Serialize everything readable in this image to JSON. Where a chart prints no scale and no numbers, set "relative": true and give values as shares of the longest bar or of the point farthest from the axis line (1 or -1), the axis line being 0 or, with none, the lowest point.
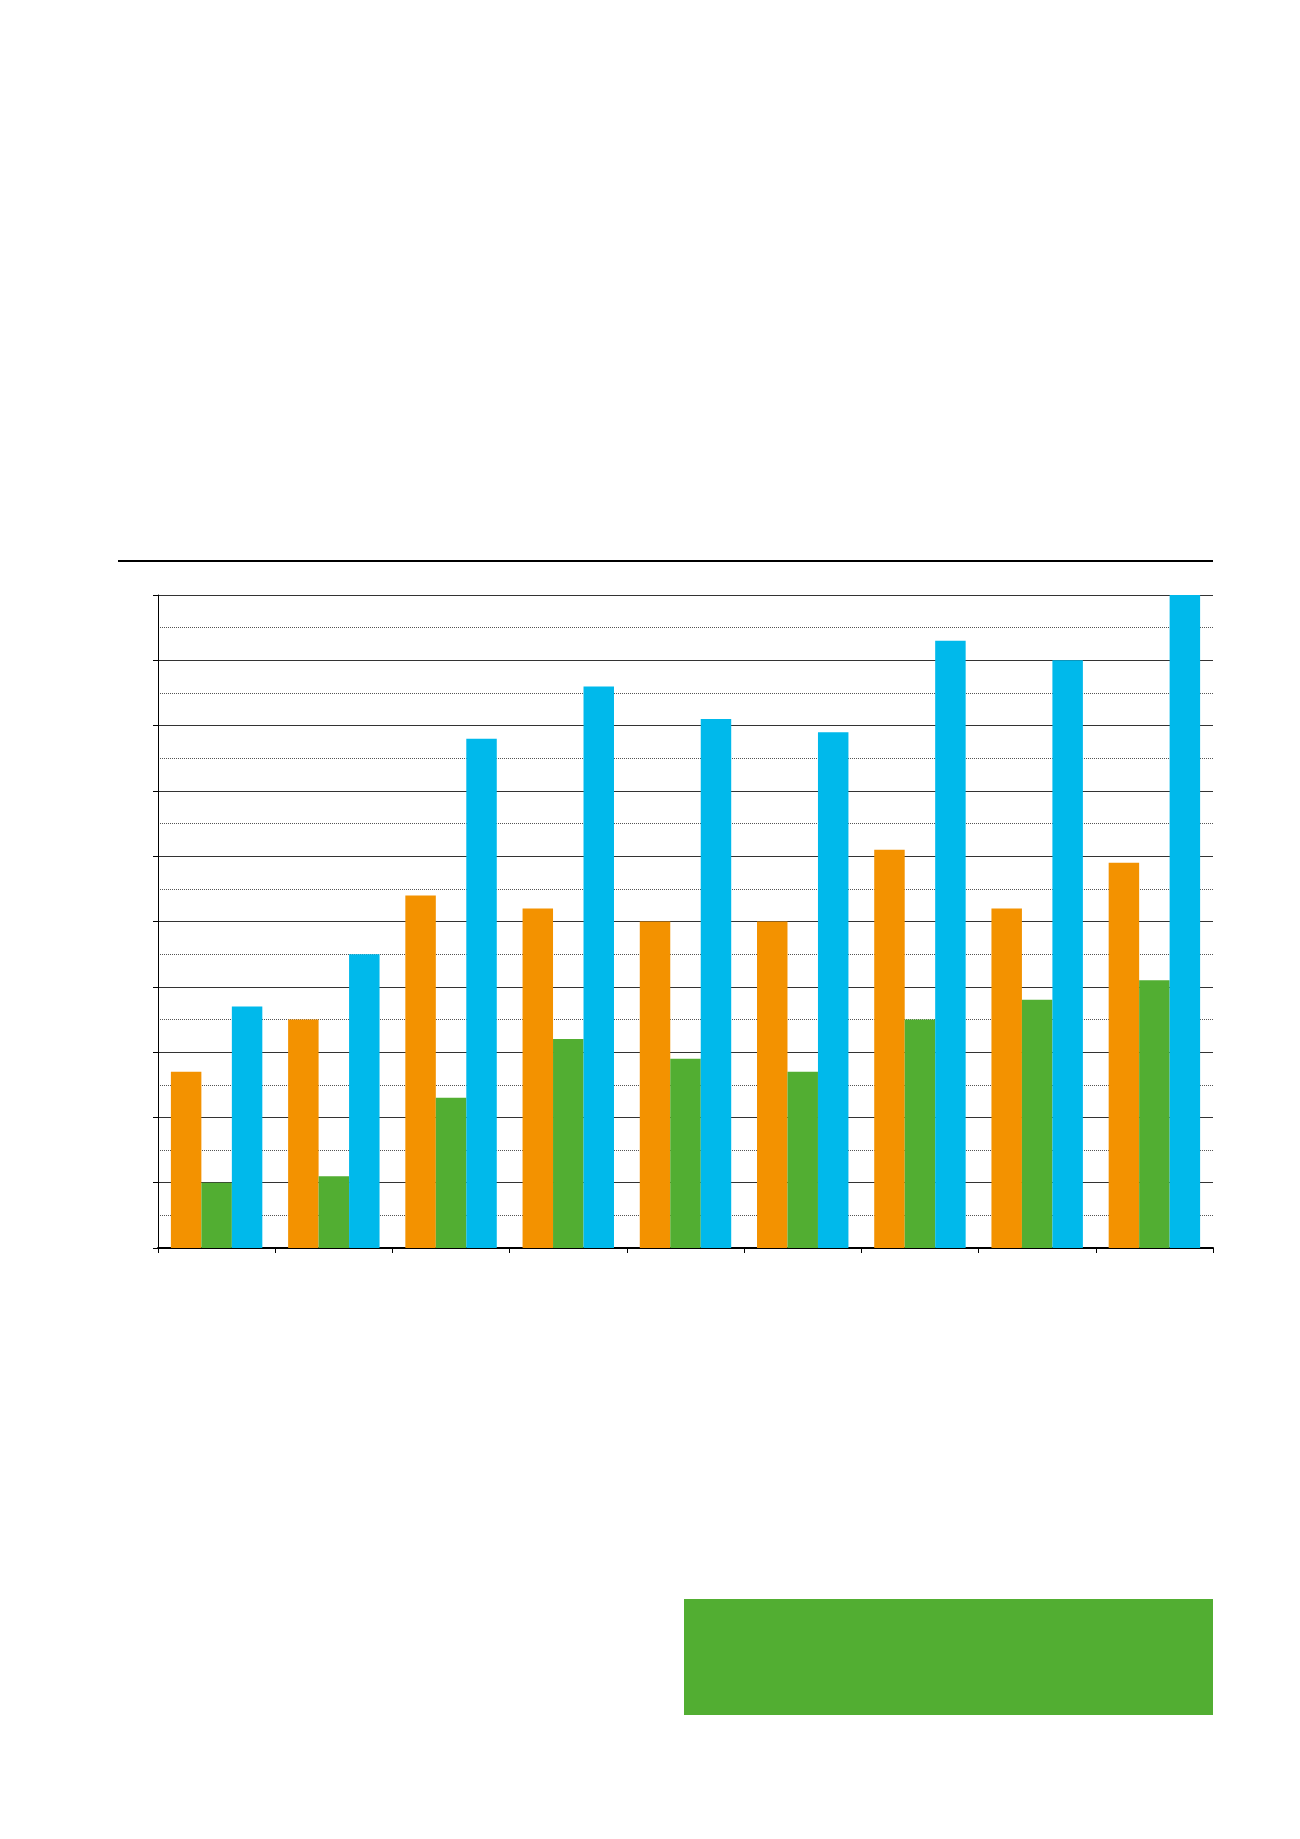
{
  "chart_data": {
    "type": "bar",
    "relative": true,
    "grid": "y",
    "categories": [
      null,
      null,
      null,
      null,
      null,
      null,
      null,
      null,
      null
    ],
    "series": [
      {
        "color": "#f39200",
        "values": [
          0.27,
          0.35,
          0.54,
          0.52,
          0.5,
          0.5,
          0.61,
          0.52,
          0.59
        ]
      },
      {
        "color": "#52ae32",
        "values": [
          0.1,
          0.11,
          0.23,
          0.32,
          0.29,
          0.27,
          0.35,
          0.38,
          0.41
        ]
      },
      {
        "color": "#00b9eb",
        "values": [
          0.37,
          0.45,
          0.78,
          0.86,
          0.81,
          0.79,
          0.93,
          0.9,
          1
        ]
      }
    ]
  }
}
